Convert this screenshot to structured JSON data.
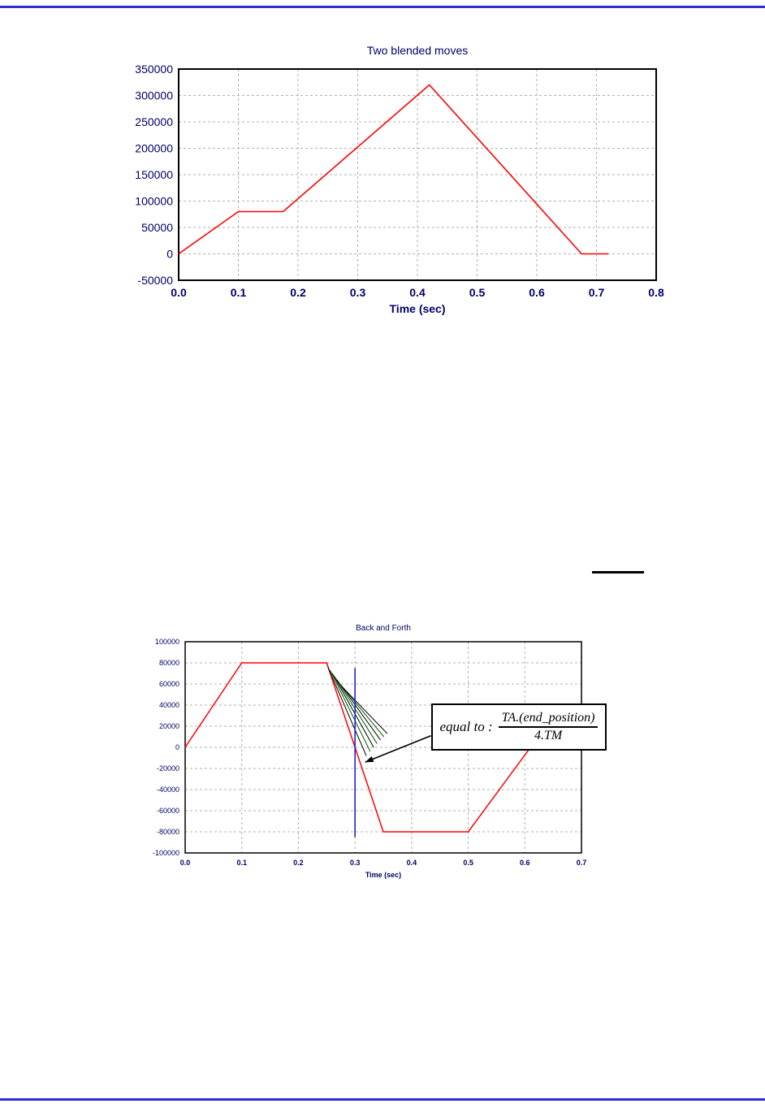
{
  "page": {
    "top_rule_color": "#2d2dd0",
    "bottom_rule_color": "#2d2dd0"
  },
  "chart_data": [
    {
      "type": "line",
      "title": "Two blended moves",
      "xlabel": "Time (sec)",
      "ylabel": "",
      "xlim": [
        0.0,
        0.8
      ],
      "ylim": [
        -50000,
        350000
      ],
      "xticks": [
        0.0,
        0.1,
        0.2,
        0.3,
        0.4,
        0.5,
        0.6,
        0.7,
        0.8
      ],
      "xtick_labels": [
        "0.0",
        "0.1",
        "0.2",
        "0.3",
        "0.4",
        "0.5",
        "0.6",
        "0.7",
        "0.8"
      ],
      "yticks": [
        -50000,
        0,
        50000,
        100000,
        150000,
        200000,
        250000,
        300000,
        350000
      ],
      "ytick_labels": [
        "-50000",
        "0",
        "50000",
        "100000",
        "150000",
        "200000",
        "250000",
        "300000",
        "350000"
      ],
      "grid": "dashed",
      "legend": "none",
      "text_color": "#000066",
      "series": [
        {
          "name": "position-profile",
          "color": "#ff0000",
          "width": 1.6,
          "points": [
            [
              0.0,
              0
            ],
            [
              0.1,
              80000
            ],
            [
              0.175,
              80000
            ],
            [
              0.42,
              320000
            ],
            [
              0.675,
              0
            ],
            [
              0.72,
              0
            ]
          ]
        }
      ]
    },
    {
      "type": "line",
      "title": "Back and Forth",
      "xlabel": "Time (sec)",
      "ylabel": "",
      "xlim": [
        0.0,
        0.7
      ],
      "ylim": [
        -100000,
        100000
      ],
      "xticks": [
        0.0,
        0.1,
        0.2,
        0.3,
        0.4,
        0.5,
        0.6,
        0.7
      ],
      "xtick_labels": [
        "0.0",
        "0.1",
        "0.2",
        "0.3",
        "0.4",
        "0.5",
        "0.6",
        "0.7"
      ],
      "yticks": [
        -100000,
        -80000,
        -60000,
        -40000,
        -20000,
        0,
        20000,
        40000,
        60000,
        80000,
        100000
      ],
      "ytick_labels": [
        "-100000",
        "-80000",
        "-60000",
        "-40000",
        "-20000",
        "0",
        "20000",
        "40000",
        "60000",
        "80000",
        "100000"
      ],
      "grid": "dashed",
      "legend": "none",
      "text_color": "#000066",
      "series": [
        {
          "name": "position-profile",
          "color": "#ff0000",
          "width": 1.5,
          "points": [
            [
              0.0,
              0
            ],
            [
              0.1,
              80000
            ],
            [
              0.25,
              80000
            ],
            [
              0.35,
              -80000
            ],
            [
              0.5,
              -80000
            ],
            [
              0.61,
              0
            ],
            [
              0.7,
              0
            ]
          ]
        },
        {
          "name": "tangent-fan-1",
          "color": "#000000",
          "width": 1,
          "points": [
            [
              0.252,
              76000
            ],
            [
              0.32,
              -8000
            ]
          ]
        },
        {
          "name": "tangent-fan-2",
          "color": "#005a00",
          "width": 1,
          "points": [
            [
              0.256,
              73000
            ],
            [
              0.327,
              -4000
            ]
          ]
        },
        {
          "name": "tangent-fan-3",
          "color": "#000000",
          "width": 1,
          "points": [
            [
              0.26,
              70000
            ],
            [
              0.333,
              0
            ]
          ]
        },
        {
          "name": "tangent-fan-4",
          "color": "#005a00",
          "width": 1,
          "points": [
            [
              0.264,
              67000
            ],
            [
              0.339,
              3500
            ]
          ]
        },
        {
          "name": "tangent-fan-5",
          "color": "#000000",
          "width": 1,
          "points": [
            [
              0.268,
              64000
            ],
            [
              0.345,
              7000
            ]
          ]
        },
        {
          "name": "tangent-fan-6",
          "color": "#005a00",
          "width": 1,
          "points": [
            [
              0.272,
              61000
            ],
            [
              0.351,
              10000
            ]
          ]
        },
        {
          "name": "tangent-fan-7",
          "color": "#000000",
          "width": 1,
          "points": [
            [
              0.276,
              58000
            ],
            [
              0.357,
              13000
            ]
          ]
        },
        {
          "name": "time-marker",
          "color": "#2222cc",
          "width": 1.6,
          "points": [
            [
              0.3,
              75000
            ],
            [
              0.3,
              -85000
            ]
          ]
        }
      ],
      "annotation": {
        "label": "equal to :",
        "numerator": "TA.(end_position)",
        "denominator": "4.TM",
        "arrow_from": [
          0.434,
          11000
        ],
        "arrow_to": [
          0.318,
          -14000
        ]
      }
    }
  ]
}
